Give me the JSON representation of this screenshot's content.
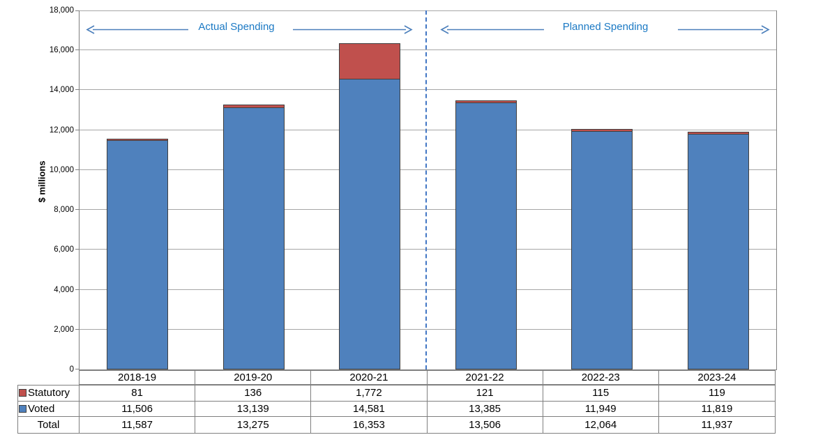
{
  "chart_data": {
    "type": "bar",
    "stacked": true,
    "title": "",
    "xlabel": "",
    "ylabel": "$ millions",
    "ylim": [
      0,
      18000
    ],
    "ytick_interval": 2000,
    "ytick_labels": [
      "0",
      "2,000",
      "4,000",
      "6,000",
      "8,000",
      "10,000",
      "12,000",
      "14,000",
      "16,000",
      "18,000"
    ],
    "grid": "horizontal",
    "categories": [
      "2018-19",
      "2019-20",
      "2020-21",
      "2021-22",
      "2022-23",
      "2023-24"
    ],
    "series": [
      {
        "name": "Voted",
        "color": "#4F81BD",
        "values": [
          11506,
          13139,
          14581,
          13385,
          11949,
          11819
        ]
      },
      {
        "name": "Statutory",
        "color": "#C0504D",
        "values": [
          81,
          136,
          1772,
          121,
          115,
          119
        ]
      }
    ],
    "totals": [
      11587,
      13275,
      16353,
      13506,
      12064,
      11937
    ],
    "separator_after_category_index": 2,
    "annotations": {
      "actual_label": "Actual Spending",
      "planned_label": "Planned Spending",
      "text_color": "#1B79C4",
      "arrow_color": "#4A7EBB",
      "separator_color": "#4176C4"
    }
  },
  "table": {
    "year_headers": [
      "2018-19",
      "2019-20",
      "2020-21",
      "2021-22",
      "2022-23",
      "2023-24"
    ],
    "rows": [
      {
        "label": "Statutory",
        "swatch_color": "#C0504D",
        "values": [
          "81",
          "136",
          "1,772",
          "121",
          "115",
          "119"
        ]
      },
      {
        "label": "Voted",
        "swatch_color": "#4F81BD",
        "values": [
          "11,506",
          "13,139",
          "14,581",
          "13,385",
          "11,949",
          "11,819"
        ]
      },
      {
        "label": "Total",
        "swatch_color": null,
        "values": [
          "11,587",
          "13,275",
          "16,353",
          "13,506",
          "12,064",
          "11,937"
        ]
      }
    ]
  }
}
